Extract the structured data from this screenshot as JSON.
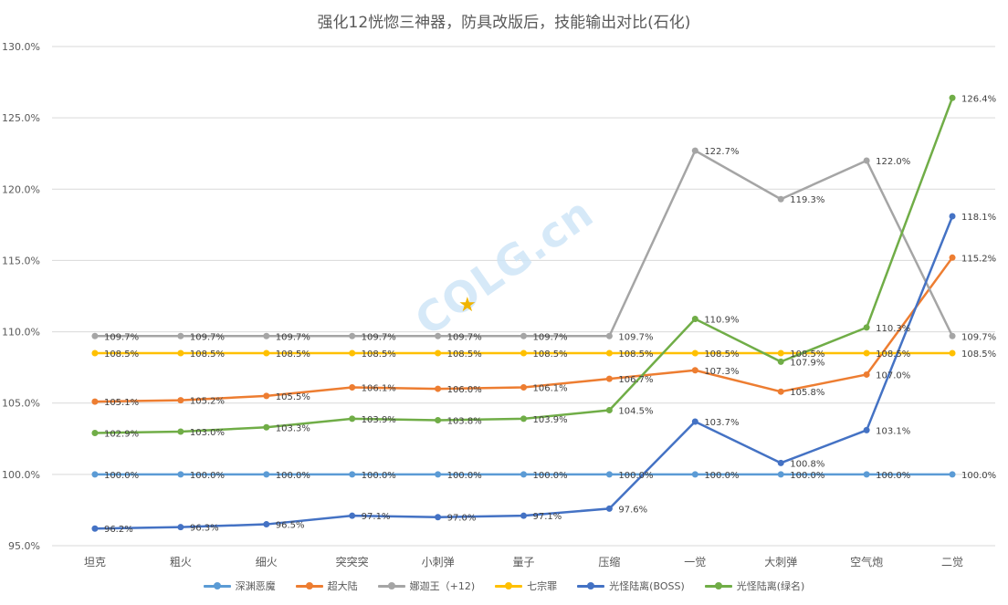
{
  "chart_data": {
    "type": "line",
    "title": "强化12恍惚三神器，防具改版后，技能输出对比(石化)",
    "categories": [
      "坦克",
      "粗火",
      "细火",
      "突突突",
      "小刺弹",
      "量子",
      "压缩",
      "一觉",
      "大刺弹",
      "空气炮",
      "二觉"
    ],
    "ylim": [
      95,
      130
    ],
    "yticks": [
      95,
      100,
      105,
      110,
      115,
      120,
      125,
      130
    ],
    "ytick_labels": [
      "95.0%",
      "100.0%",
      "105.0%",
      "110.0%",
      "115.0%",
      "120.0%",
      "125.0%",
      "130.0%"
    ],
    "grid": true,
    "legend_position": "bottom",
    "series": [
      {
        "name": "深渊恶魔",
        "color": "#5b9bd5",
        "values": [
          100.0,
          100.0,
          100.0,
          100.0,
          100.0,
          100.0,
          100.0,
          100.0,
          100.0,
          100.0,
          100.0
        ],
        "labels": [
          "100.0%",
          "100.0%",
          "100.0%",
          "100.0%",
          "100.0%",
          "100.0%",
          "100.0%",
          "100.0%",
          "100.0%",
          "100.0%",
          "100.0%"
        ]
      },
      {
        "name": "超大陆",
        "color": "#ed7d31",
        "values": [
          105.1,
          105.2,
          105.5,
          106.1,
          106.0,
          106.1,
          106.7,
          107.3,
          105.8,
          107.0,
          115.2
        ],
        "labels": [
          "105.1%",
          "105.2%",
          "105.5%",
          "106.1%",
          "106.0%",
          "106.1%",
          "106.7%",
          "107.3%",
          "105.8%",
          "107.0%",
          "115.2%"
        ]
      },
      {
        "name": "娜迦王（+12)",
        "color": "#a5a5a5",
        "values": [
          109.7,
          109.7,
          109.7,
          109.7,
          109.7,
          109.7,
          109.7,
          122.7,
          119.3,
          122.0,
          109.7
        ],
        "labels": [
          "109.7%",
          "109.7%",
          "109.7%",
          "109.7%",
          "109.7%",
          "109.7%",
          "109.7%",
          "122.7%",
          "119.3%",
          "122.0%",
          "109.7%"
        ]
      },
      {
        "name": "七宗罪",
        "color": "#ffc000",
        "values": [
          108.5,
          108.5,
          108.5,
          108.5,
          108.5,
          108.5,
          108.5,
          108.5,
          108.5,
          108.5,
          108.5
        ],
        "labels": [
          "108.5%",
          "108.5%",
          "108.5%",
          "108.5%",
          "108.5%",
          "108.5%",
          "108.5%",
          "108.5%",
          "108.5%",
          "108.5%",
          "108.5%"
        ]
      },
      {
        "name": "光怪陆离(BOSS)",
        "color": "#4472c4",
        "values": [
          96.2,
          96.3,
          96.5,
          97.1,
          97.0,
          97.1,
          97.6,
          103.7,
          100.8,
          103.1,
          118.1
        ],
        "labels": [
          "96.2%",
          "96.3%",
          "96.5%",
          "97.1%",
          "97.0%",
          "97.1%",
          "97.6%",
          "103.7%",
          "100.8%",
          "103.1%",
          "118.1%"
        ]
      },
      {
        "name": "光怪陆离(绿名)",
        "color": "#70ad47",
        "values": [
          102.9,
          103.0,
          103.3,
          103.9,
          103.8,
          103.9,
          104.5,
          110.9,
          107.9,
          110.3,
          126.4
        ],
        "labels": [
          "102.9%",
          "103.0%",
          "103.3%",
          "103.9%",
          "103.8%",
          "103.9%",
          "104.5%",
          "110.9%",
          "107.9%",
          "110.3%",
          "126.4%"
        ]
      }
    ]
  },
  "watermark": {
    "text": "COLG.cn",
    "star": "★"
  }
}
